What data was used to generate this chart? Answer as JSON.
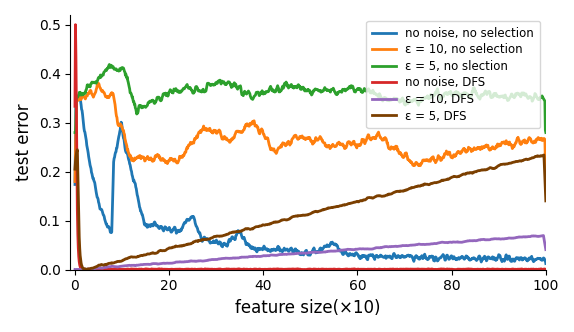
{
  "title": "",
  "xlabel": "feature size(×10)",
  "ylabel": "test error",
  "xlim": [
    -1,
    100
  ],
  "ylim": [
    0,
    0.52
  ],
  "yticks": [
    0.0,
    0.1,
    0.2,
    0.3,
    0.4,
    0.5
  ],
  "xticks": [
    0,
    20,
    40,
    60,
    80,
    100
  ],
  "legend_entries": [
    "no noise, no selection",
    "ε = 10, no selection",
    "ε = 5, no slection",
    "no noise, DFS",
    "ε = 10, DFS",
    "ε = 5, DFS"
  ],
  "colors": [
    "#1f77b4",
    "#ff7f0e",
    "#2ca02c",
    "#d62728",
    "#9467bd",
    "#7B3F00"
  ],
  "linewidth": 2.0,
  "seed": 42
}
